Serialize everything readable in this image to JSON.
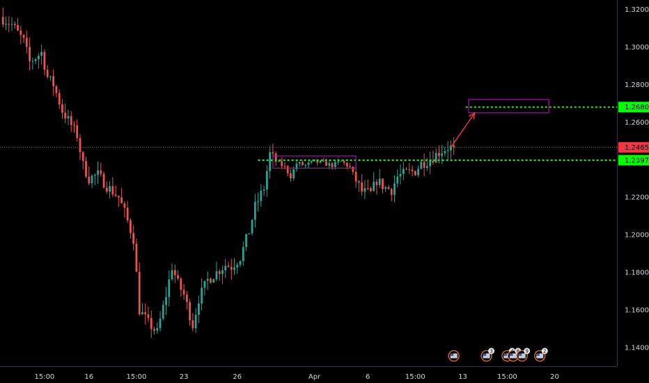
{
  "chart_data": {
    "type": "candlestick",
    "y_range": [
      1.13,
      1.325
    ],
    "x_range": [
      0,
      208
    ],
    "y_ticks": [
      {
        "value": 1.32,
        "label": "1.32000"
      },
      {
        "value": 1.3,
        "label": "1.30000"
      },
      {
        "value": 1.28,
        "label": "1.28000"
      },
      {
        "value": 1.26,
        "label": "1.26000"
      },
      {
        "value": 1.22,
        "label": "1.22000"
      },
      {
        "value": 1.2,
        "label": "1.20000"
      },
      {
        "value": 1.18,
        "label": "1.18000"
      },
      {
        "value": 1.16,
        "label": "1.16000"
      },
      {
        "value": 1.14,
        "label": "1.14000"
      }
    ],
    "x_ticks": [
      {
        "index": 15,
        "label": "15:00"
      },
      {
        "index": 30,
        "label": "16"
      },
      {
        "index": 46,
        "label": "15:00"
      },
      {
        "index": 62,
        "label": "23"
      },
      {
        "index": 80,
        "label": "26"
      },
      {
        "index": 106,
        "label": "Apr"
      },
      {
        "index": 124,
        "label": "6"
      },
      {
        "index": 140,
        "label": "15:00"
      },
      {
        "index": 156,
        "label": "13"
      },
      {
        "index": 171,
        "label": "15:00"
      },
      {
        "index": 187,
        "label": "20"
      }
    ],
    "current_price": {
      "value": 1.24655,
      "label": "1.24655",
      "color": "#f23645"
    },
    "levels": [
      {
        "value": 1.26801,
        "label": "1.26801",
        "color": "#00ff00",
        "x_start": 157
      },
      {
        "value": 1.23974,
        "label": "1.23974",
        "color": "#00ff00",
        "x_start": 87
      }
    ],
    "zones": [
      {
        "x_start": 92,
        "x_end": 120,
        "y_low": 1.2355,
        "y_high": 1.242,
        "color": "#c000c0"
      },
      {
        "x_start": 158,
        "x_end": 185,
        "y_low": 1.265,
        "y_high": 1.272,
        "color": "#c000c0"
      }
    ],
    "arrow": {
      "from_x": 152,
      "from_y": 1.2465,
      "to_x": 160,
      "to_y": 1.2648,
      "color": "#f23645"
    },
    "key_points": [
      [
        0,
        1.316
      ],
      [
        4,
        1.312
      ],
      [
        8,
        1.303
      ],
      [
        10,
        1.292
      ],
      [
        14,
        1.297
      ],
      [
        16,
        1.284
      ],
      [
        18,
        1.28
      ],
      [
        21,
        1.266
      ],
      [
        23,
        1.261
      ],
      [
        26,
        1.253
      ],
      [
        28,
        1.237
      ],
      [
        30,
        1.23
      ],
      [
        33,
        1.232
      ],
      [
        36,
        1.226
      ],
      [
        40,
        1.22
      ],
      [
        42,
        1.212
      ],
      [
        45,
        1.198
      ],
      [
        47,
        1.16
      ],
      [
        50,
        1.153
      ],
      [
        53,
        1.148
      ],
      [
        56,
        1.168
      ],
      [
        58,
        1.183
      ],
      [
        60,
        1.174
      ],
      [
        62,
        1.168
      ],
      [
        65,
        1.152
      ],
      [
        67,
        1.166
      ],
      [
        70,
        1.176
      ],
      [
        73,
        1.18
      ],
      [
        76,
        1.184
      ],
      [
        78,
        1.183
      ],
      [
        81,
        1.188
      ],
      [
        84,
        1.202
      ],
      [
        86,
        1.215
      ],
      [
        89,
        1.225
      ],
      [
        91,
        1.243
      ],
      [
        93,
        1.239
      ],
      [
        96,
        1.236
      ],
      [
        98,
        1.231
      ],
      [
        100,
        1.238
      ],
      [
        103,
        1.237
      ],
      [
        106,
        1.239
      ],
      [
        109,
        1.238
      ],
      [
        112,
        1.237
      ],
      [
        115,
        1.239
      ],
      [
        118,
        1.236
      ],
      [
        120,
        1.229
      ],
      [
        122,
        1.223
      ],
      [
        125,
        1.222
      ],
      [
        127,
        1.229
      ],
      [
        130,
        1.225
      ],
      [
        132,
        1.224
      ],
      [
        134,
        1.231
      ],
      [
        137,
        1.233
      ],
      [
        140,
        1.234
      ],
      [
        142,
        1.238
      ],
      [
        145,
        1.24
      ],
      [
        148,
        1.244
      ],
      [
        151,
        1.2465
      ],
      [
        153,
        1.2465
      ]
    ],
    "events": [
      {
        "index": 153,
        "count": ""
      },
      {
        "index": 164,
        "count": "3"
      },
      {
        "index": 171,
        "count": "4"
      },
      {
        "index": 173,
        "count": "8"
      },
      {
        "index": 176,
        "count": "9"
      },
      {
        "index": 182,
        "count": "2"
      }
    ],
    "colors": {
      "up": "#26a69a",
      "down": "#ef5350",
      "text": "#d1d4dc",
      "border": "#363a45",
      "background": "#000000"
    }
  }
}
